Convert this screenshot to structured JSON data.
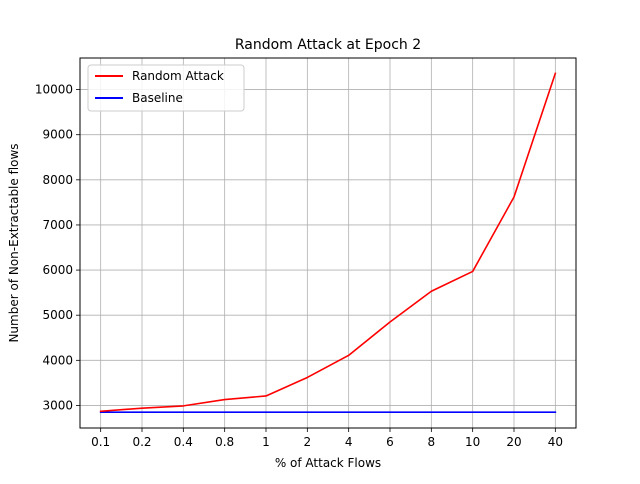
{
  "chart_data": {
    "type": "line",
    "title": "Random Attack at Epoch 2",
    "xlabel": "% of Attack Flows",
    "ylabel": "Number of Non-Extractable flows",
    "categories": [
      "0.1",
      "0.2",
      "0.4",
      "0.8",
      "1",
      "2",
      "4",
      "6",
      "8",
      "10",
      "20",
      "40"
    ],
    "ylim": [
      2500,
      10700
    ],
    "yticks": [
      3000,
      4000,
      5000,
      6000,
      7000,
      8000,
      9000,
      10000
    ],
    "grid": true,
    "legend_position": "upper-left",
    "series": [
      {
        "name": "Random Attack",
        "color": "#ff0000",
        "values": [
          2870,
          2940,
          2990,
          3130,
          3210,
          3620,
          4110,
          4850,
          5530,
          5970,
          7620,
          10360
        ]
      },
      {
        "name": "Baseline",
        "color": "#0000ff",
        "values": [
          2850,
          2850,
          2850,
          2850,
          2850,
          2850,
          2850,
          2850,
          2850,
          2850,
          2850,
          2850
        ]
      }
    ]
  }
}
